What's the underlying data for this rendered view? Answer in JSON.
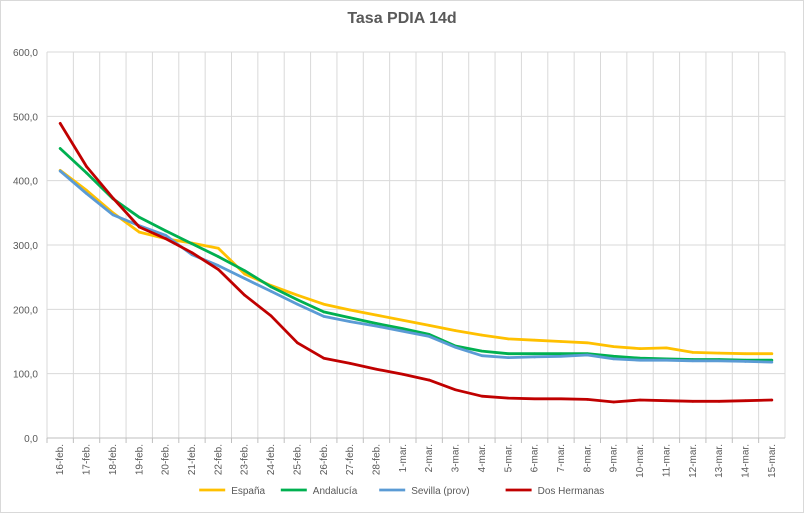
{
  "chart_data": {
    "type": "line",
    "title": "Tasa PDIA 14d",
    "xlabel": "",
    "ylabel": "",
    "ylim": [
      0,
      600
    ],
    "yticks": [
      "0,0",
      "100,0",
      "200,0",
      "300,0",
      "400,0",
      "500,0",
      "600,0"
    ],
    "grid": true,
    "legend_position": "bottom",
    "categories": [
      "16-feb.",
      "17-feb.",
      "18-feb.",
      "19-feb.",
      "20-feb.",
      "21-feb.",
      "22-feb.",
      "23-feb.",
      "24-feb.",
      "25-feb.",
      "26-feb.",
      "27-feb.",
      "28-feb.",
      "1-mar.",
      "2-mar.",
      "3-mar.",
      "4-mar.",
      "5-mar.",
      "6-mar.",
      "7-mar.",
      "8-mar.",
      "9-mar.",
      "10-mar.",
      "11-mar.",
      "12-mar.",
      "13-mar.",
      "14-mar.",
      "15-mar."
    ],
    "series": [
      {
        "name": "España",
        "color": "#ffc000",
        "values": [
          416,
          385,
          350,
          320,
          310,
          303,
          295,
          255,
          237,
          222,
          208,
          199,
          191,
          183,
          175,
          167,
          160,
          154,
          152,
          150,
          148,
          142,
          139,
          140,
          133,
          132,
          131,
          131
        ]
      },
      {
        "name": "Andalucía",
        "color": "#00b050",
        "values": [
          450,
          412,
          372,
          343,
          322,
          302,
          282,
          260,
          235,
          215,
          196,
          187,
          178,
          170,
          161,
          143,
          135,
          131,
          131,
          131,
          131,
          127,
          124,
          123,
          122,
          122,
          121,
          121
        ]
      },
      {
        "name": "Sevilla (prov)",
        "color": "#5b9bd5",
        "values": [
          415,
          380,
          347,
          330,
          315,
          285,
          268,
          248,
          228,
          208,
          189,
          181,
          174,
          166,
          158,
          141,
          128,
          125,
          126,
          127,
          129,
          123,
          121,
          121,
          120,
          120,
          119,
          118
        ]
      },
      {
        "name": "Dos Hermanas",
        "color": "#c00000",
        "values": [
          489,
          422,
          373,
          328,
          310,
          288,
          262,
          222,
          190,
          148,
          124,
          116,
          107,
          99,
          90,
          75,
          65,
          62,
          61,
          61,
          60,
          56,
          59,
          58,
          57,
          57,
          58,
          59
        ]
      }
    ]
  }
}
